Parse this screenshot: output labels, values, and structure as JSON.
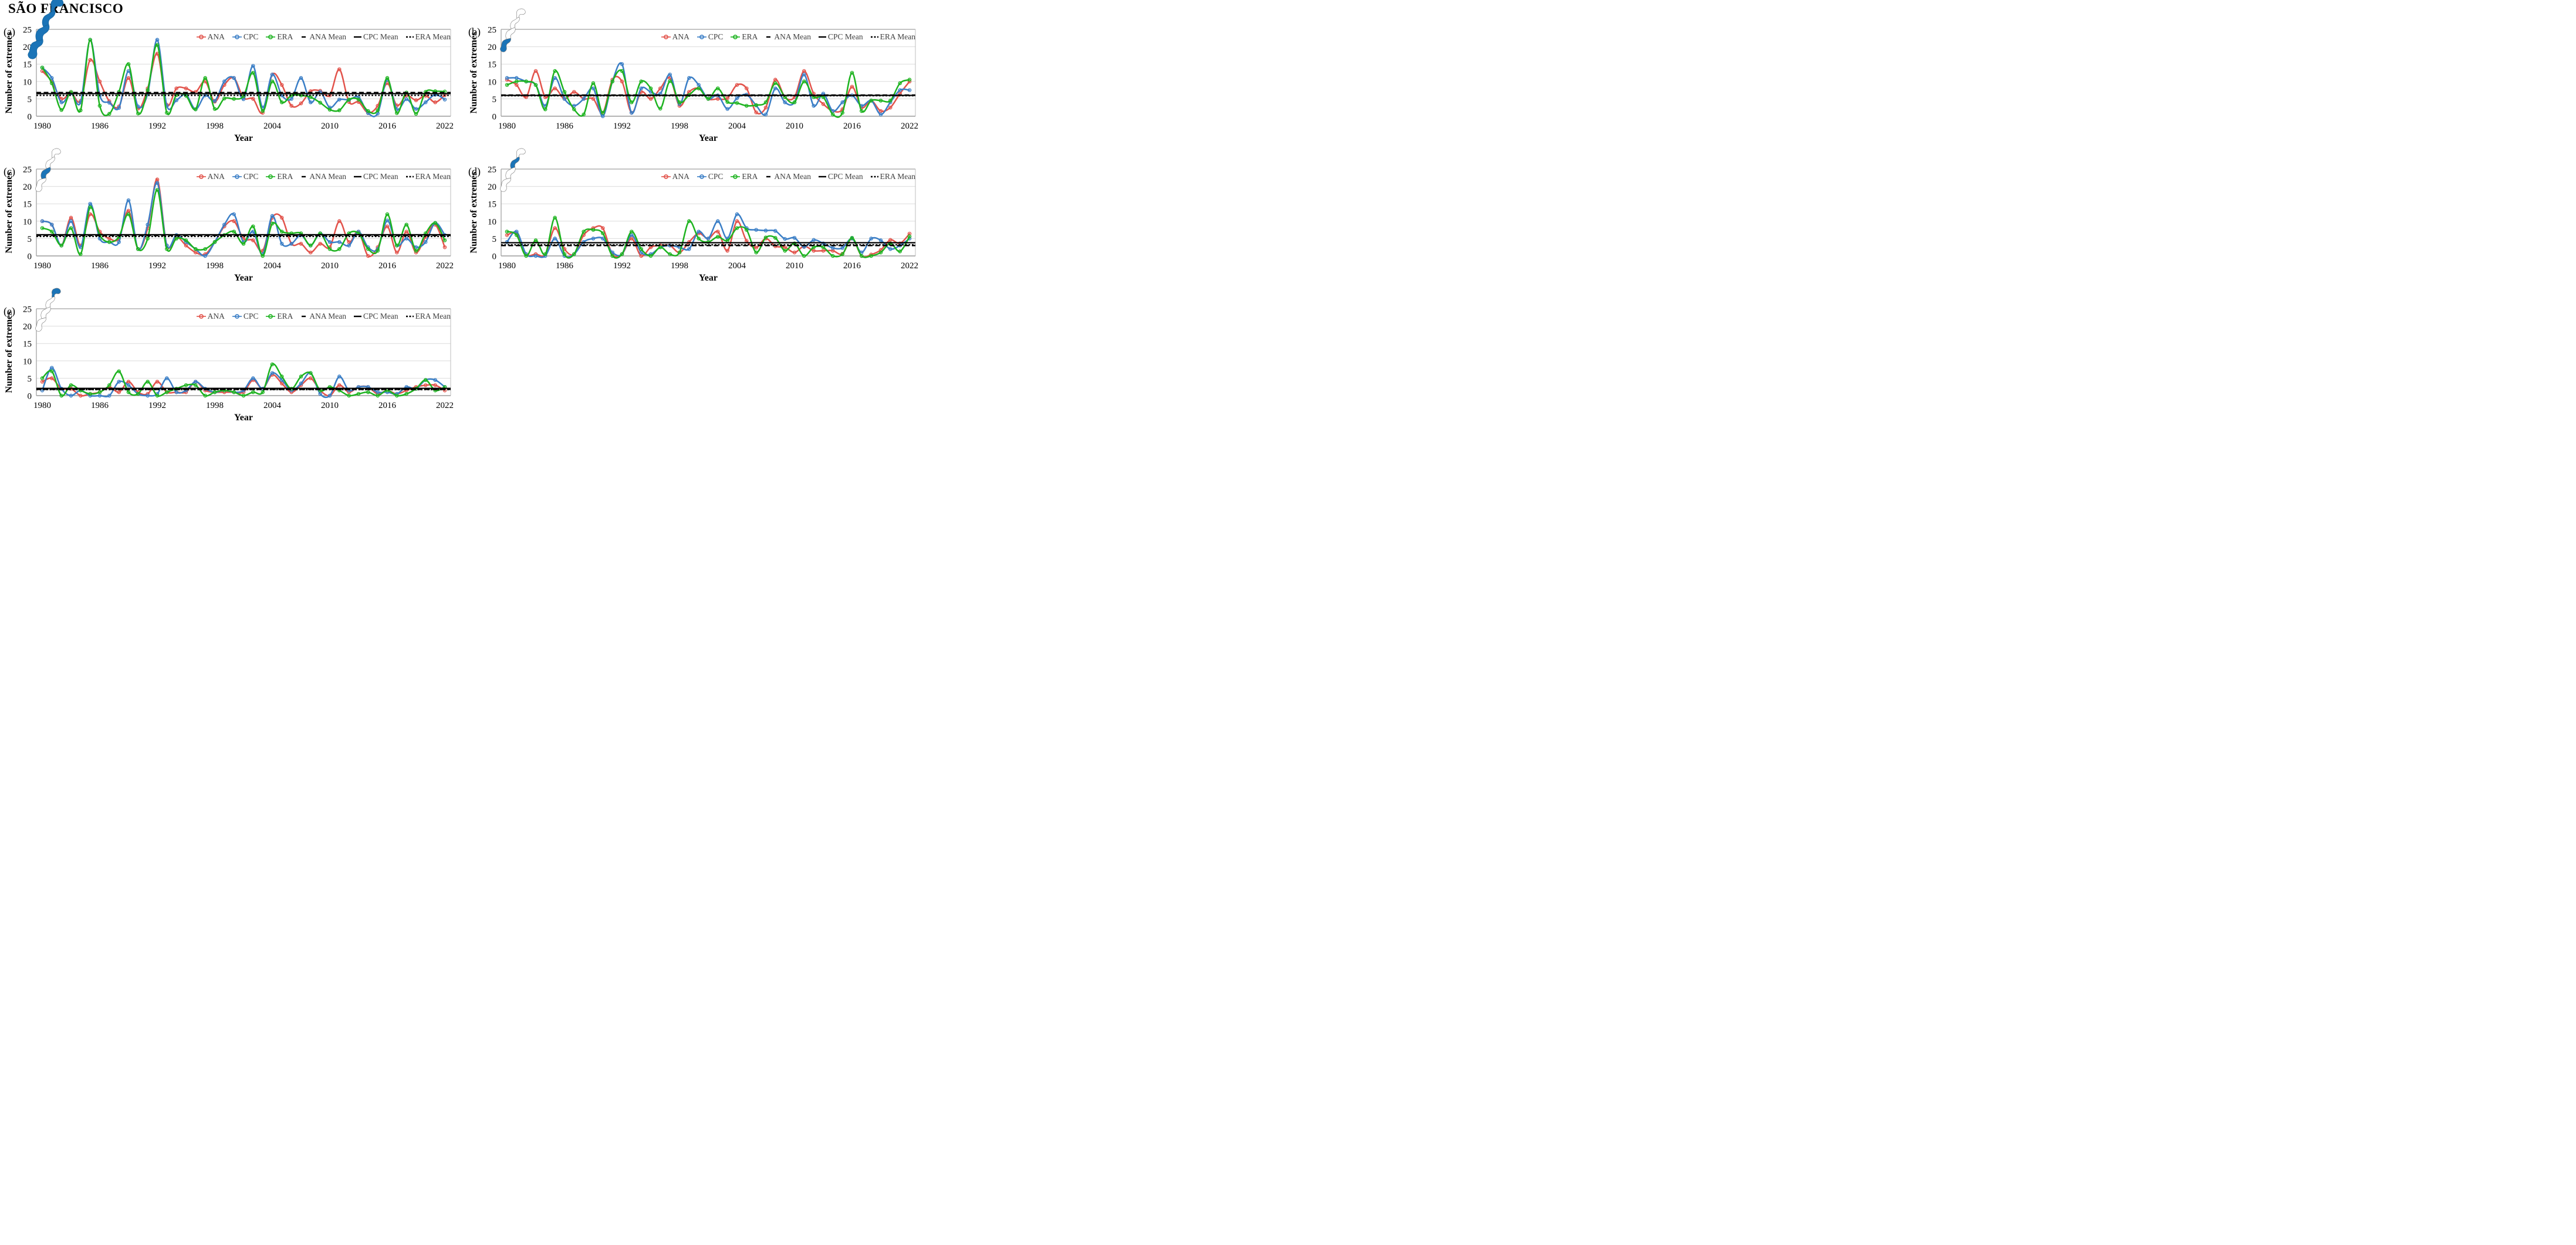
{
  "title": "SÃO FRANCISCO",
  "legend": {
    "ana": "ANA",
    "cpc": "CPC",
    "era": "ERA",
    "ana_mean": "ANA Mean",
    "cpc_mean": "CPC Mean",
    "era_mean": "ERA Mean"
  },
  "colors": {
    "ana": "#e2534b",
    "cpc": "#3a7ec6",
    "era": "#1db31f",
    "mean": "#000000",
    "map_fill": "#1b74b7",
    "grid": "#dcdcdc",
    "axis": "#9b9b9b",
    "border": "#bdbdbd",
    "legend_text": "#3f3f3f"
  },
  "axes": {
    "xlabel": "Year",
    "ylabel": "Number of extremes",
    "year_start": 1980,
    "year_end": 2022,
    "xticks": [
      1980,
      1986,
      1992,
      1998,
      2004,
      2010,
      2016,
      2022
    ],
    "ylim": [
      0,
      25
    ],
    "yticks": [
      0,
      5,
      10,
      15,
      20,
      25
    ]
  },
  "chart_data": [
    {
      "type": "line",
      "panel_label": "(a)",
      "map_highlight": "all",
      "ylim": [
        0,
        25
      ],
      "series": [
        {
          "name": "ANA",
          "values": [
            13,
            10,
            5,
            6.7,
            4.4,
            16.2,
            10,
            4.3,
            2.8,
            11,
            2.2,
            8,
            18,
            3.3,
            8,
            8,
            7,
            10,
            4.2,
            9,
            11,
            5.3,
            5,
            1,
            12,
            9,
            3,
            3.7,
            7.2,
            7.3,
            6,
            13.5,
            4.1,
            4.1,
            1,
            3,
            9.5,
            3.1,
            6,
            4.6,
            5.9,
            4,
            6.1
          ]
        },
        {
          "name": "CPC",
          "values": [
            14,
            11,
            4,
            6.6,
            4,
            22,
            6,
            3.9,
            2.4,
            13,
            2.8,
            6.5,
            22,
            3,
            4.6,
            6.2,
            2,
            6,
            4.4,
            10,
            11,
            4.9,
            14.5,
            2.5,
            12,
            6,
            5,
            11,
            4,
            7,
            2.5,
            4.8,
            4.7,
            5.5,
            0.9,
            0.8,
            10.5,
            2,
            4.9,
            2.1,
            4,
            6.2,
            4.8
          ]
        },
        {
          "name": "ERA",
          "values": [
            14,
            9.5,
            1.8,
            7,
            1.7,
            22,
            3,
            0.7,
            7,
            15,
            0.8,
            7.5,
            20.5,
            1,
            6.1,
            5.9,
            2,
            11,
            2.1,
            5.1,
            5,
            5.8,
            12.5,
            1.5,
            10,
            4,
            6,
            6,
            5.5,
            3.9,
            1.9,
            1.7,
            4.8,
            4.8,
            1.5,
            1.7,
            11,
            0.9,
            6.8,
            0.7,
            7,
            7.2,
            7.1
          ]
        }
      ],
      "means": {
        "ana": 6.8,
        "cpc": 6.5,
        "era": 6.0
      }
    },
    {
      "type": "line",
      "panel_label": "(b)",
      "map_highlight": "south",
      "ylim": [
        0,
        25
      ],
      "series": [
        {
          "name": "ANA",
          "values": [
            10.5,
            9,
            5.5,
            13,
            5.5,
            8,
            5,
            7,
            5,
            5,
            1,
            10.5,
            10,
            1,
            7,
            5,
            8,
            11,
            3,
            7,
            8,
            5,
            5,
            5.2,
            9,
            8,
            1.1,
            2.5,
            10.5,
            5.5,
            5.5,
            13,
            6.5,
            3.5,
            1.5,
            2,
            8.5,
            2.5,
            4.5,
            1.5,
            2.5,
            6.5,
            10
          ]
        },
        {
          "name": "CPC",
          "values": [
            11,
            11,
            10,
            9,
            3,
            11,
            5,
            3,
            5,
            8,
            0,
            10,
            15,
            1,
            8,
            7,
            6.5,
            12,
            3.5,
            11,
            9,
            5,
            6,
            2.1,
            5.2,
            6.2,
            3.1,
            0.5,
            8,
            4,
            4,
            12,
            3,
            6.5,
            1.5,
            4,
            6,
            3,
            4.5,
            0.5,
            4,
            7.5,
            7.5
          ]
        },
        {
          "name": "ERA",
          "values": [
            9,
            10,
            10,
            9,
            2,
            13,
            7,
            2,
            0.5,
            9.5,
            1,
            10,
            13,
            4,
            10,
            8,
            2.2,
            10.1,
            4,
            6.1,
            8,
            5,
            8,
            4.1,
            3.8,
            3,
            3.2,
            4,
            9.5,
            5.5,
            4,
            10,
            5.5,
            5.5,
            0.5,
            1,
            12.5,
            1.5,
            4.5,
            4.5,
            4.5,
            9.5,
            10.5
          ]
        }
      ],
      "means": {
        "ana": 6.1,
        "cpc": 6.0,
        "era": 5.9
      }
    },
    {
      "type": "line",
      "panel_label": "(c)",
      "map_highlight": "middle",
      "ylim": [
        0,
        25
      ],
      "series": [
        {
          "name": "ANA",
          "values": [
            10,
            9,
            3,
            11,
            3,
            12,
            7,
            5,
            5,
            13,
            2,
            8,
            22,
            3,
            5.5,
            3,
            1,
            0.5,
            4,
            8.5,
            10,
            5,
            4.5,
            1.5,
            11,
            11,
            3.5,
            3.5,
            1,
            3.5,
            2.5,
            10,
            4,
            7,
            0,
            2.5,
            8.5,
            1,
            7,
            1,
            5.5,
            9,
            2.5
          ]
        },
        {
          "name": "CPC",
          "values": [
            10,
            9,
            3,
            10,
            2.5,
            15,
            5,
            4,
            4,
            16,
            2,
            9,
            21,
            3,
            6,
            4,
            2,
            0,
            4,
            9,
            12,
            4,
            7,
            0.5,
            11.5,
            3.5,
            3.5,
            6,
            3,
            6.5,
            4,
            4,
            3,
            7,
            2.5,
            2,
            10.2,
            3,
            5,
            2.5,
            4,
            9.5,
            6
          ]
        },
        {
          "name": "ERA",
          "values": [
            8,
            7,
            3,
            8,
            0.5,
            14,
            6,
            4,
            5.5,
            12,
            2,
            5,
            19,
            2,
            5,
            4.5,
            2,
            2,
            4,
            6,
            7,
            3.5,
            8.5,
            0,
            9.3,
            7,
            6.5,
            6.5,
            3,
            6.5,
            2,
            2,
            6.5,
            6.5,
            2,
            1.5,
            12,
            3,
            9,
            1.5,
            6.5,
            9.5,
            4.5
          ]
        }
      ],
      "means": {
        "ana": 5.9,
        "cpc": 6.1,
        "era": 5.6
      }
    },
    {
      "type": "line",
      "panel_label": "(d)",
      "map_highlight": "north",
      "ylim": [
        0,
        25
      ],
      "series": [
        {
          "name": "ANA",
          "values": [
            6,
            6.5,
            0.5,
            0.5,
            0.5,
            8,
            2,
            0.5,
            6,
            8,
            8,
            0.5,
            0.5,
            5,
            0,
            2.5,
            3,
            3,
            1,
            4,
            6.5,
            5,
            7,
            1.5,
            10,
            4.3,
            2.4,
            5,
            2.8,
            2.5,
            1,
            2.8,
            1.5,
            1.5,
            1.5,
            0.6,
            5,
            0,
            0.4,
            1.7,
            4.6,
            3.6,
            6.4
          ]
        },
        {
          "name": "CPC",
          "values": [
            4,
            7,
            0.5,
            0,
            0,
            5,
            0,
            0.5,
            4,
            5,
            5,
            1,
            0.5,
            6,
            1,
            0.5,
            2.5,
            3,
            2.5,
            2,
            7,
            5,
            10,
            5,
            12,
            8,
            7.5,
            7.3,
            7.2,
            4.9,
            5.2,
            2.6,
            4.6,
            3.6,
            2.3,
            2.3,
            5,
            1,
            5,
            4.5,
            2,
            3,
            5
          ]
        },
        {
          "name": "ERA",
          "values": [
            7,
            6,
            0,
            4.5,
            0.5,
            11,
            0.5,
            0.5,
            7,
            7.5,
            6.5,
            0,
            0.5,
            7,
            2,
            0,
            2.5,
            0.5,
            1,
            10,
            5,
            4,
            5.5,
            4.4,
            8,
            7.5,
            1,
            5.3,
            5.2,
            1.5,
            3.6,
            0,
            2.5,
            2.5,
            0,
            0.5,
            5.2,
            0,
            0,
            1,
            3.6,
            1.3,
            5.6
          ]
        }
      ],
      "means": {
        "ana": 3.0,
        "cpc": 3.8,
        "era": 3.2
      }
    },
    {
      "type": "line",
      "panel_label": "(e)",
      "map_highlight": "northeast",
      "ylim": [
        0,
        25
      ],
      "series": [
        {
          "name": "ANA",
          "values": [
            4,
            5,
            2,
            2,
            0,
            0.5,
            1,
            2.5,
            1,
            4,
            1,
            0.5,
            4,
            1,
            1,
            1,
            4,
            1.5,
            1,
            1,
            1,
            1,
            4.5,
            2,
            6,
            3.5,
            1,
            3,
            5,
            1.5,
            0,
            3,
            1,
            2.5,
            2.5,
            0.5,
            1.5,
            0.5,
            1.5,
            2.5,
            3,
            3,
            1.5
          ]
        },
        {
          "name": "CPC",
          "values": [
            1.5,
            8,
            2,
            0,
            1.5,
            0,
            0,
            0,
            4,
            3,
            0.5,
            0,
            0.5,
            5,
            1,
            1.5,
            4,
            2,
            1,
            1.5,
            1,
            1.5,
            5,
            2,
            6.5,
            4.5,
            1.5,
            3.5,
            6.5,
            0.5,
            0,
            5.5,
            1.5,
            2.5,
            2.5,
            1,
            1,
            0.5,
            2.5,
            2,
            4.5,
            4.5,
            2.5
          ]
        },
        {
          "name": "ERA",
          "values": [
            5,
            7,
            0,
            3,
            1.5,
            0.5,
            1,
            3,
            7,
            1,
            0.5,
            4,
            0,
            1,
            2,
            3,
            3,
            0,
            1,
            1.5,
            1,
            0,
            1,
            1,
            9,
            5.5,
            2,
            5.5,
            6.5,
            1.5,
            2.5,
            1.5,
            0,
            0.5,
            1,
            0,
            1.5,
            0,
            0.5,
            2,
            4.5,
            1.5,
            2.5
          ]
        }
      ],
      "means": {
        "ana": 1.8,
        "cpc": 2.1,
        "era": 1.75
      }
    }
  ]
}
